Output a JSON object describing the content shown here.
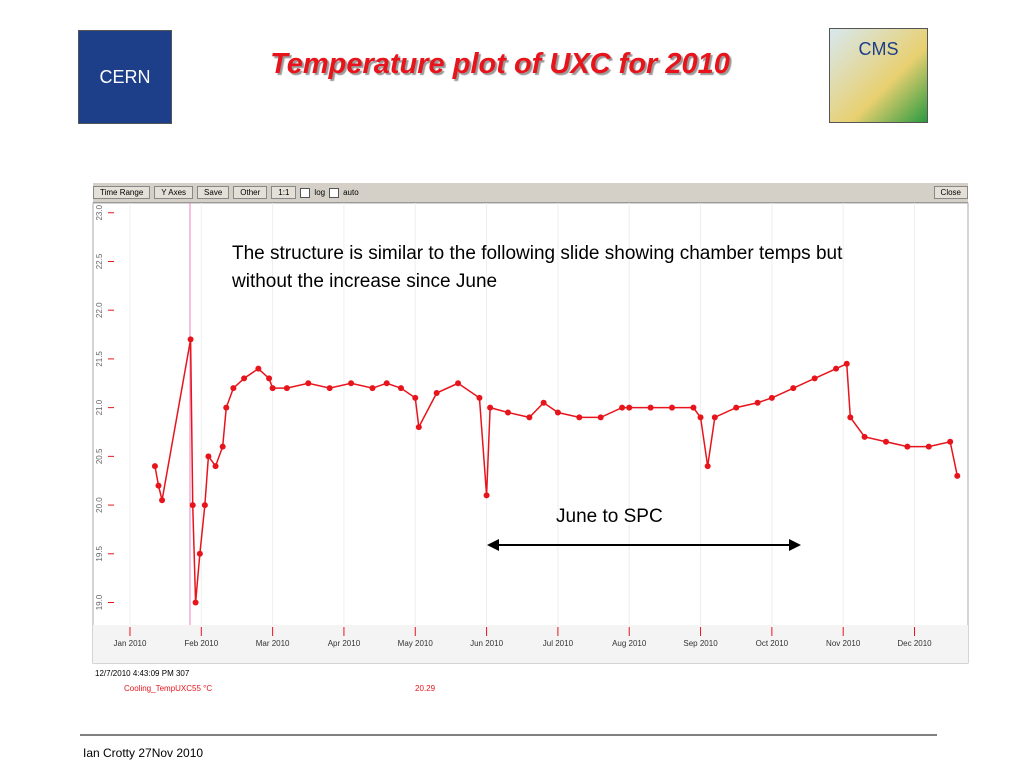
{
  "header": {
    "title": "Temperature plot of UXC for 2010",
    "left_logo": "CERN",
    "right_logo": "CMS"
  },
  "toolbar": {
    "buttons": [
      "Time Range",
      "Y Axes",
      "Save",
      "Other",
      "1:1"
    ],
    "checkboxes": [
      "log",
      "auto"
    ],
    "close": "Close"
  },
  "annotation": {
    "text": "The structure is similar to the following slide showing chamber temps but without the increase since June",
    "arrow_label": "June to SPC"
  },
  "status": {
    "timestamp": "12/7/2010 4:43:09 PM 307",
    "channel": "Cooling_TempUXC55 °C",
    "reading": "20.29"
  },
  "footer": {
    "text": "Ian Crotty  27Nov  2010"
  },
  "chart_data": {
    "type": "line",
    "color": "#e8141c",
    "xlim": [
      -0.28,
      11.75
    ],
    "ylim": [
      18.8,
      23.1
    ],
    "xticks": [
      {
        "value": 0,
        "label": "Jan 2010"
      },
      {
        "value": 1,
        "label": "Feb 2010"
      },
      {
        "value": 2,
        "label": "Mar 2010"
      },
      {
        "value": 3,
        "label": "Apr 2010"
      },
      {
        "value": 4,
        "label": "May 2010"
      },
      {
        "value": 5,
        "label": "Jun 2010"
      },
      {
        "value": 6,
        "label": "Jul 2010"
      },
      {
        "value": 7,
        "label": "Aug 2010"
      },
      {
        "value": 8,
        "label": "Sep 2010"
      },
      {
        "value": 9,
        "label": "Oct 2010"
      },
      {
        "value": 10,
        "label": "Nov 2010"
      },
      {
        "value": 11,
        "label": "Dec 2010"
      }
    ],
    "yticks": [
      {
        "value": 23,
        "label": "23.0"
      },
      {
        "value": 22.5,
        "label": "22.5"
      },
      {
        "value": 22,
        "label": "22.0"
      },
      {
        "value": 21.5,
        "label": "21.5"
      },
      {
        "value": 21,
        "label": "21.0"
      },
      {
        "value": 20.5,
        "label": "20.5"
      },
      {
        "value": 20,
        "label": "20.0"
      },
      {
        "value": 19.5,
        "label": "19.5"
      },
      {
        "value": 19,
        "label": "19.0"
      }
    ],
    "grid": true,
    "series": [
      {
        "name": "Cooling_TempUXC55",
        "color": "#e8141c",
        "x": [
          0.35,
          0.4,
          0.45,
          0.85,
          0.88,
          0.92,
          0.98,
          1.05,
          1.1,
          1.2,
          1.3,
          1.35,
          1.45,
          1.6,
          1.8,
          1.95,
          2.0,
          2.2,
          2.5,
          2.8,
          3.1,
          3.4,
          3.6,
          3.8,
          4.0,
          4.05,
          4.3,
          4.6,
          4.9,
          5.0,
          5.05,
          5.3,
          5.6,
          5.8,
          6.0,
          6.3,
          6.6,
          6.9,
          7.0,
          7.3,
          7.6,
          7.9,
          8.0,
          8.1,
          8.2,
          8.5,
          8.8,
          9.0,
          9.3,
          9.6,
          9.9,
          10.05,
          10.1,
          10.3,
          10.6,
          10.9,
          11.2,
          11.5,
          11.6
        ],
        "values": [
          20.4,
          20.2,
          20.05,
          21.7,
          20.0,
          19.0,
          19.5,
          20.0,
          20.5,
          20.4,
          20.6,
          21.0,
          21.2,
          21.3,
          21.4,
          21.3,
          21.2,
          21.2,
          21.25,
          21.2,
          21.25,
          21.2,
          21.25,
          21.2,
          21.1,
          20.8,
          21.15,
          21.25,
          21.1,
          20.1,
          21.0,
          20.95,
          20.9,
          21.05,
          20.95,
          20.9,
          20.9,
          21.0,
          21.0,
          21.0,
          21.0,
          21.0,
          20.9,
          20.4,
          20.9,
          21.0,
          21.05,
          21.1,
          21.2,
          21.3,
          21.4,
          21.45,
          20.9,
          20.7,
          20.65,
          20.6,
          20.6,
          20.65,
          20.3
        ]
      }
    ]
  }
}
